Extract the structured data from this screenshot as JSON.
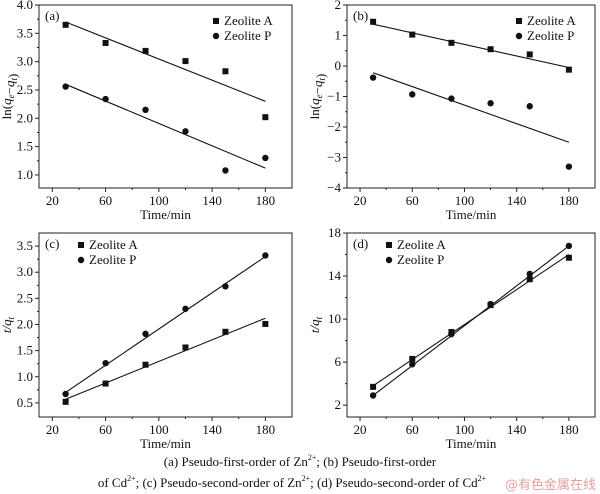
{
  "chart_data": [
    {
      "type": "scatter",
      "panel_label": "(a)",
      "xlabel": "Time/min",
      "ylabel_parts": [
        [
          "ln(",
          ""
        ],
        [
          "q",
          "i"
        ],
        [
          "e",
          "sub"
        ],
        [
          "−",
          ""
        ],
        [
          "q",
          "i"
        ],
        [
          "t",
          "sub"
        ],
        [
          ")",
          ""
        ]
      ],
      "xlim": [
        10,
        200
      ],
      "ylim": [
        0.77,
        4.0
      ],
      "xticks": [
        20,
        60,
        100,
        140,
        180
      ],
      "xtick_labels": [
        "20",
        "60",
        "100",
        "140",
        "180"
      ],
      "yticks": [
        1.0,
        1.5,
        2.0,
        2.5,
        3.0,
        3.5,
        4.0
      ],
      "ytick_labels": [
        "1.0",
        "1.5",
        "2.0",
        "2.5",
        "3.0",
        "3.5",
        "4.0"
      ],
      "legend_position": "top-right",
      "x": [
        30,
        60,
        90,
        120,
        150,
        180
      ],
      "series": [
        {
          "name": "Zeolite A",
          "marker": "square",
          "values": [
            3.65,
            3.33,
            3.19,
            3.01,
            2.83,
            2.02
          ],
          "fit": [
            [
              30,
              3.7
            ],
            [
              180,
              2.3
            ]
          ]
        },
        {
          "name": "Zeolite P",
          "marker": "circle",
          "values": [
            2.56,
            2.34,
            2.15,
            1.77,
            1.08,
            1.3
          ],
          "fit": [
            [
              30,
              2.6
            ],
            [
              180,
              1.12
            ]
          ]
        }
      ]
    },
    {
      "type": "scatter",
      "panel_label": "(b)",
      "xlabel": "Time/min",
      "ylabel_parts": [
        [
          "ln(",
          ""
        ],
        [
          "q",
          "i"
        ],
        [
          "e",
          "sub"
        ],
        [
          "−",
          ""
        ],
        [
          "q",
          "i"
        ],
        [
          "t",
          "sub"
        ],
        [
          ")",
          ""
        ]
      ],
      "xlim": [
        10,
        200
      ],
      "ylim": [
        -4,
        2
      ],
      "xticks": [
        20,
        60,
        100,
        140,
        180
      ],
      "xtick_labels": [
        "20",
        "60",
        "100",
        "140",
        "180"
      ],
      "yticks": [
        -4,
        -3,
        -2,
        -1,
        0,
        1,
        2
      ],
      "ytick_labels": [
        "−4",
        "−3",
        "−2",
        "−1",
        "0",
        "1",
        "2"
      ],
      "legend_position": "top-right",
      "x": [
        30,
        60,
        90,
        120,
        150,
        180
      ],
      "series": [
        {
          "name": "Zeolite A",
          "marker": "square",
          "values": [
            1.45,
            1.03,
            0.76,
            0.55,
            0.38,
            -0.12
          ],
          "fit": [
            [
              30,
              1.37
            ],
            [
              180,
              -0.05
            ]
          ]
        },
        {
          "name": "Zeolite P",
          "marker": "circle",
          "values": [
            -0.38,
            -0.93,
            -1.07,
            -1.22,
            -1.32,
            -3.3
          ],
          "fit": [
            [
              30,
              -0.22
            ],
            [
              180,
              -2.5
            ]
          ]
        }
      ]
    },
    {
      "type": "scatter",
      "panel_label": "(c)",
      "xlabel": "Time/min",
      "ylabel_parts": [
        [
          "t/",
          "i"
        ],
        [
          "q",
          "i"
        ],
        [
          "t",
          "sub"
        ]
      ],
      "xlim": [
        10,
        200
      ],
      "ylim": [
        0.23,
        3.75
      ],
      "xticks": [
        20,
        60,
        100,
        140,
        180
      ],
      "xtick_labels": [
        "20",
        "60",
        "100",
        "140",
        "180"
      ],
      "yticks": [
        0.5,
        1.0,
        1.5,
        2.0,
        2.5,
        3.0,
        3.5
      ],
      "ytick_labels": [
        "0.5",
        "1.0",
        "1.5",
        "2.0",
        "2.5",
        "3.0",
        "3.5"
      ],
      "legend_position": "top-left",
      "x": [
        30,
        60,
        90,
        120,
        150,
        180
      ],
      "series": [
        {
          "name": "Zeolite A",
          "marker": "square",
          "values": [
            0.52,
            0.87,
            1.23,
            1.56,
            1.86,
            2.01
          ],
          "fit": [
            [
              30,
              0.57
            ],
            [
              180,
              2.12
            ]
          ]
        },
        {
          "name": "Zeolite P",
          "marker": "circle",
          "values": [
            0.67,
            1.26,
            1.82,
            2.3,
            2.73,
            3.32
          ],
          "fit": [
            [
              30,
              0.7
            ],
            [
              180,
              3.3
            ]
          ]
        }
      ]
    },
    {
      "type": "scatter",
      "panel_label": "(d)",
      "xlabel": "Time/min",
      "ylabel_parts": [
        [
          "t/",
          "i"
        ],
        [
          "q",
          "i"
        ],
        [
          "t",
          "sub"
        ]
      ],
      "xlim": [
        10,
        200
      ],
      "ylim": [
        0.9,
        18
      ],
      "xticks": [
        20,
        60,
        100,
        140,
        180
      ],
      "xtick_labels": [
        "20",
        "60",
        "100",
        "140",
        "180"
      ],
      "yticks": [
        2,
        6,
        10,
        14,
        18
      ],
      "ytick_labels": [
        "2",
        "6",
        "10",
        "14",
        "18"
      ],
      "legend_position": "top-left",
      "x": [
        30,
        60,
        90,
        120,
        150,
        180
      ],
      "series": [
        {
          "name": "Zeolite A",
          "marker": "square",
          "values": [
            3.7,
            6.3,
            8.8,
            11.3,
            13.7,
            15.7
          ],
          "fit": [
            [
              30,
              3.8
            ],
            [
              180,
              16.0
            ]
          ]
        },
        {
          "name": "Zeolite P",
          "marker": "circle",
          "values": [
            2.9,
            5.8,
            8.6,
            11.4,
            14.2,
            16.8
          ],
          "fit": [
            [
              30,
              2.9
            ],
            [
              180,
              16.8
            ]
          ]
        }
      ]
    }
  ],
  "caption": {
    "line1": {
      "a": "(a) Pseudo-first-order of Zn",
      "a_sup": "2+",
      "b": "; (b) Pseudo-first-order"
    },
    "line2": {
      "a": "of Cd",
      "a_sup": "2+",
      "b": "; (c) Pseudo-second-order of Zn",
      "b_sup": "2+",
      "c": "; (d) Pseudo-second-order of Cd",
      "c_sup": "2+"
    }
  },
  "watermark": "@有色金属在线"
}
